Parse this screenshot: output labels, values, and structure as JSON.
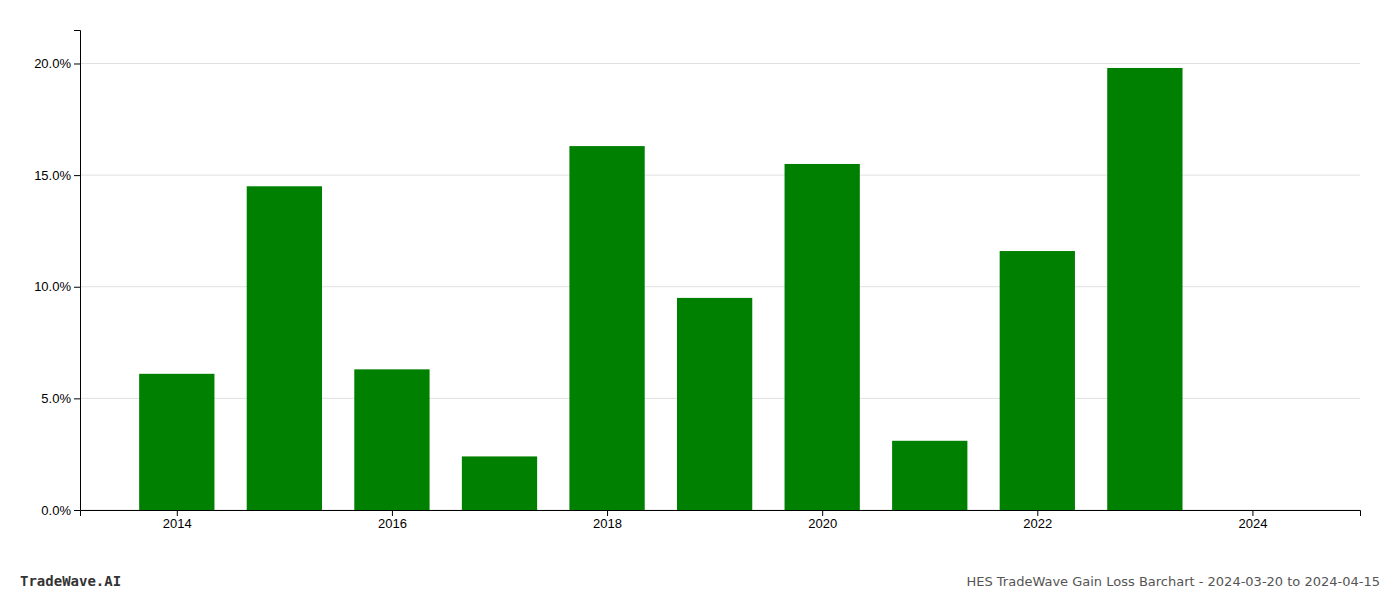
{
  "chart_data": {
    "type": "bar",
    "x": [
      2014,
      2015,
      2016,
      2017,
      2018,
      2019,
      2020,
      2021,
      2022,
      2023
    ],
    "values": [
      0.061,
      0.145,
      0.063,
      0.024,
      0.163,
      0.095,
      0.155,
      0.031,
      0.116,
      0.198
    ],
    "color": "#008000",
    "xlim": [
      2013.1,
      2025.0
    ],
    "xticks": [
      2014,
      2016,
      2018,
      2020,
      2022,
      2024
    ],
    "ylim": [
      0,
      0.215
    ],
    "yticks": [
      {
        "value": 0.0,
        "label": "0.0%"
      },
      {
        "value": 0.05,
        "label": "5.0%"
      },
      {
        "value": 0.1,
        "label": "10.0%"
      },
      {
        "value": 0.15,
        "label": "15.0%"
      },
      {
        "value": 0.2,
        "label": "20.0%"
      }
    ],
    "grid": true,
    "annotations": [
      "TradeWave.AI",
      "HES TradeWave Gain Loss Barchart - 2024-03-20 to 2024-04-15"
    ]
  }
}
